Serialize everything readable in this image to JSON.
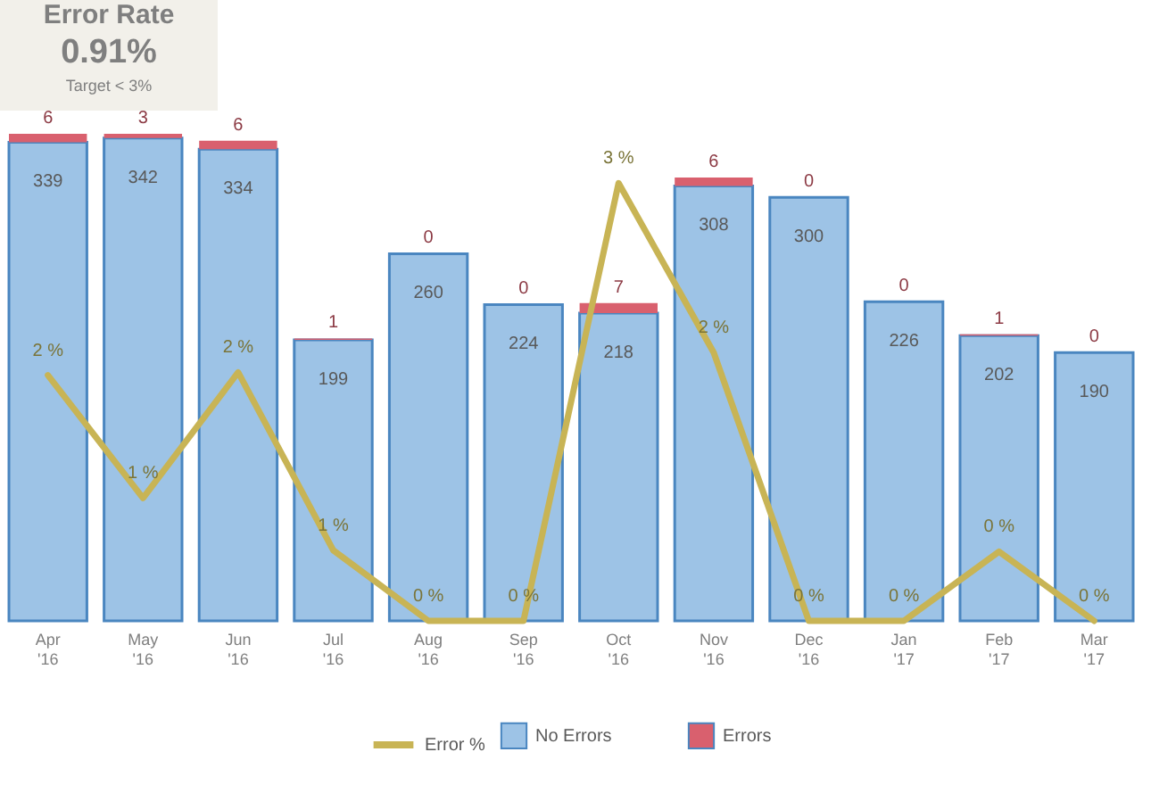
{
  "chart_data": {
    "type": "bar",
    "stacked": true,
    "annotations": [
      "Error Rate",
      "0.91%",
      "Target < 3%"
    ],
    "categories": [
      "Apr '16",
      "May '16",
      "Jun '16",
      "Jul '16",
      "Aug '16",
      "Sep '16",
      "Oct '16",
      "Nov '16",
      "Dec '16",
      "Jan '17",
      "Feb '17",
      "Mar '17"
    ],
    "series": [
      {
        "name": "No Errors",
        "color": "#9dc3e6",
        "values": [
          339,
          342,
          334,
          199,
          260,
          224,
          218,
          308,
          300,
          226,
          202,
          190
        ]
      },
      {
        "name": "Errors",
        "color": "#d9606e",
        "values": [
          6,
          3,
          6,
          1,
          0,
          0,
          7,
          6,
          0,
          0,
          1,
          0
        ]
      },
      {
        "name": "Error %",
        "type": "line",
        "axis": "y2",
        "color": "#c8b455",
        "values": [
          1.74,
          0.87,
          1.76,
          0.5,
          0,
          0,
          3.1,
          1.9,
          0,
          0,
          0.49,
          0
        ],
        "value_labels": [
          "2 %",
          "1 %",
          "2 %",
          "1 %",
          "0 %",
          "0 %",
          "3 %",
          "2 %",
          "0 %",
          "0 %",
          "0 %",
          "0 %"
        ]
      }
    ],
    "data_labels": true,
    "legend": "bottom",
    "tick_labels": "x"
  }
}
